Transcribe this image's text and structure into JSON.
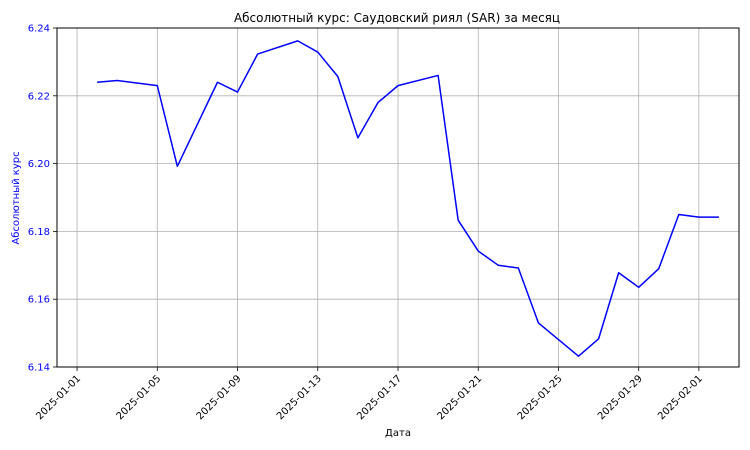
{
  "chart_data": {
    "type": "line",
    "title": "Абсолютный курс: Саудовский риял (SAR) за месяц",
    "xlabel": "Дата",
    "ylabel": "Абсолютный курс",
    "ylim": [
      6.14,
      6.24
    ],
    "xlim": [
      "2024-12-31",
      "2025-02-03"
    ],
    "grid": true,
    "line_color": "#0000ff",
    "ylabel_color": "#0000ff",
    "ytick_color": "#0000ff",
    "y_ticks": [
      "6.14",
      "6.16",
      "6.18",
      "6.20",
      "6.22",
      "6.24"
    ],
    "x_ticks": [
      "2025-01-01",
      "2025-01-05",
      "2025-01-09",
      "2025-01-13",
      "2025-01-17",
      "2025-01-21",
      "2025-01-25",
      "2025-01-29",
      "2025-02-01"
    ],
    "series": [
      {
        "x": [
          "2025-01-02",
          "2025-01-03",
          "2025-01-05",
          "2025-01-06",
          "2025-01-08",
          "2025-01-09",
          "2025-01-10",
          "2025-01-12",
          "2025-01-13",
          "2025-01-14",
          "2025-01-15",
          "2025-01-16",
          "2025-01-17",
          "2025-01-19",
          "2025-01-20",
          "2025-01-21",
          "2025-01-22",
          "2025-01-23",
          "2025-01-24",
          "2025-01-26",
          "2025-01-27",
          "2025-01-28",
          "2025-01-29",
          "2025-01-30",
          "2025-01-31",
          "2025-02-01",
          "2025-02-02"
        ],
        "values": [
          6.224,
          6.2245,
          6.223,
          6.1992,
          6.224,
          6.2211,
          6.2323,
          6.2362,
          6.2329,
          6.2257,
          6.2076,
          6.218,
          6.223,
          6.226,
          6.1833,
          6.1742,
          6.17,
          6.1692,
          6.153,
          6.1432,
          6.1483,
          6.1678,
          6.1635,
          6.169,
          6.185,
          6.1842,
          6.1842
        ]
      }
    ]
  }
}
